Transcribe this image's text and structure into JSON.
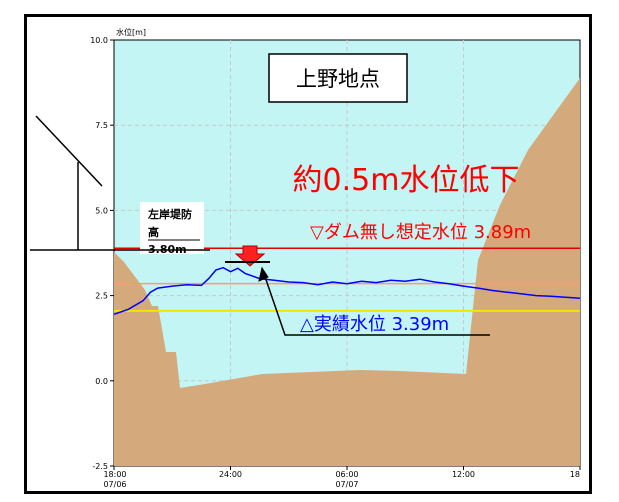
{
  "chart_data": {
    "type": "area",
    "ylabel": "水位[m]",
    "ylim": [
      -2.5,
      10.0
    ],
    "yticks": [
      "10.0",
      "7.5",
      "5.0",
      "2.5",
      "0.0",
      "-2.5"
    ],
    "xticks": [
      {
        "time": "18:00",
        "date": "07/06"
      },
      {
        "time": "24:00",
        "date": ""
      },
      {
        "time": "06:00",
        "date": "07/07"
      },
      {
        "time": "12:00",
        "date": ""
      },
      {
        "time": "18",
        "date": ""
      }
    ],
    "station_title": "上野地点",
    "reduction_label": "約0.5m水位低下",
    "levee_label_line1": "左岸堤防",
    "levee_label_line2": "高",
    "levee_height_label": "3.80m",
    "no_dam_label": "▽ダム無し想定水位 3.89m",
    "actual_label": "△実績水位 3.39m",
    "levee_height": 3.8,
    "no_dam_level": 3.89,
    "orange_level": 2.85,
    "yellow_level": 2.05,
    "actual_peak": 3.39,
    "series": [
      {
        "values": [
          [
            0,
            1.95
          ],
          [
            1,
            2.1
          ],
          [
            2,
            2.35
          ],
          [
            2.5,
            2.6
          ],
          [
            3,
            2.72
          ],
          [
            4,
            2.78
          ],
          [
            5,
            2.82
          ],
          [
            6,
            2.8
          ],
          [
            6.5,
            3.0
          ],
          [
            7,
            3.25
          ],
          [
            7.5,
            3.32
          ],
          [
            8,
            3.2
          ],
          [
            8.5,
            3.3
          ],
          [
            9,
            3.15
          ],
          [
            10,
            3.0
          ],
          [
            11,
            2.95
          ],
          [
            12,
            2.9
          ],
          [
            13,
            2.88
          ],
          [
            14,
            2.82
          ],
          [
            15,
            2.9
          ],
          [
            16,
            2.85
          ],
          [
            17,
            2.92
          ],
          [
            18,
            2.88
          ],
          [
            19,
            2.95
          ],
          [
            20,
            2.92
          ],
          [
            21,
            2.98
          ],
          [
            22,
            2.9
          ],
          [
            23,
            2.85
          ],
          [
            24,
            2.78
          ],
          [
            25,
            2.72
          ],
          [
            26,
            2.65
          ],
          [
            27,
            2.6
          ],
          [
            28,
            2.55
          ],
          [
            29,
            2.5
          ],
          [
            30,
            2.48
          ],
          [
            31,
            2.45
          ],
          [
            32,
            2.42
          ]
        ]
      }
    ],
    "colors": {
      "water": "#c4f5f5",
      "ground": "#d4aa7c",
      "series": "#0000ff",
      "no_dam": "#e00000",
      "orange": "#ff9a6a",
      "yellow": "#f2e600",
      "arrow": "#ff2020",
      "plot_bg": "#c4f5f5"
    }
  }
}
